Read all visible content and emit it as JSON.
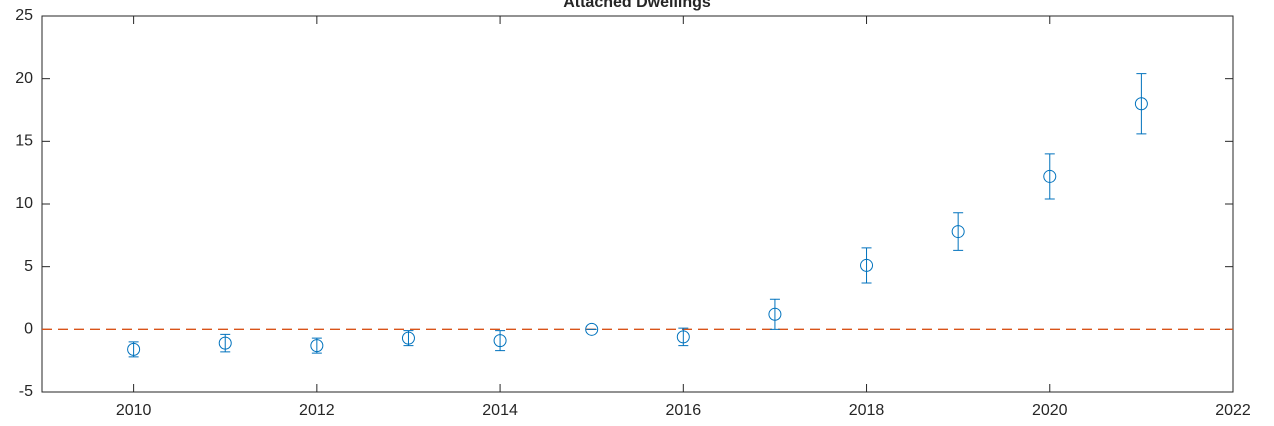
{
  "chart_data": {
    "type": "errorbar",
    "title": "Attached Dwellings",
    "series": [
      {
        "color": "#0072bd",
        "x": [
          2010,
          2011,
          2012,
          2013,
          2014,
          2015,
          2016,
          2017,
          2018,
          2019,
          2020,
          2021
        ],
        "values": [
          -1.6,
          -1.1,
          -1.3,
          -0.7,
          -0.9,
          0,
          -0.6,
          1.2,
          5.1,
          7.8,
          12.2,
          18.0
        ],
        "errors": [
          0.6,
          0.7,
          0.6,
          0.6,
          0.8,
          0,
          0.7,
          1.2,
          1.4,
          1.5,
          1.8,
          2.4
        ]
      }
    ],
    "reference_line": {
      "y": 0,
      "color": "#d95319",
      "style": "dashed"
    },
    "xlim": [
      2009,
      2022
    ],
    "xticks": [
      2010,
      2012,
      2014,
      2016,
      2018,
      2020,
      2022
    ],
    "ylim": [
      -5,
      25
    ],
    "yticks": [
      -5,
      0,
      5,
      10,
      15,
      20,
      25
    ]
  }
}
